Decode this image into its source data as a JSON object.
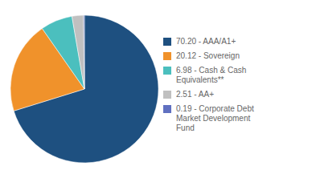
{
  "chart_data": {
    "type": "pie",
    "categories": [
      "70.20 - AAA/A1+",
      "20.12 - Sovereign",
      "6.98 - Cash & Cash\nEquivalents**",
      "2.51 - AA+",
      "0.19 - Corporate Debt\nMarket Development\nFund"
    ],
    "values": [
      70.2,
      20.12,
      6.98,
      2.51,
      0.19
    ],
    "colors": [
      "#1e5080",
      "#f0922b",
      "#4bbfbe",
      "#c0c0c0",
      "#6070c0"
    ],
    "legend": "right"
  }
}
